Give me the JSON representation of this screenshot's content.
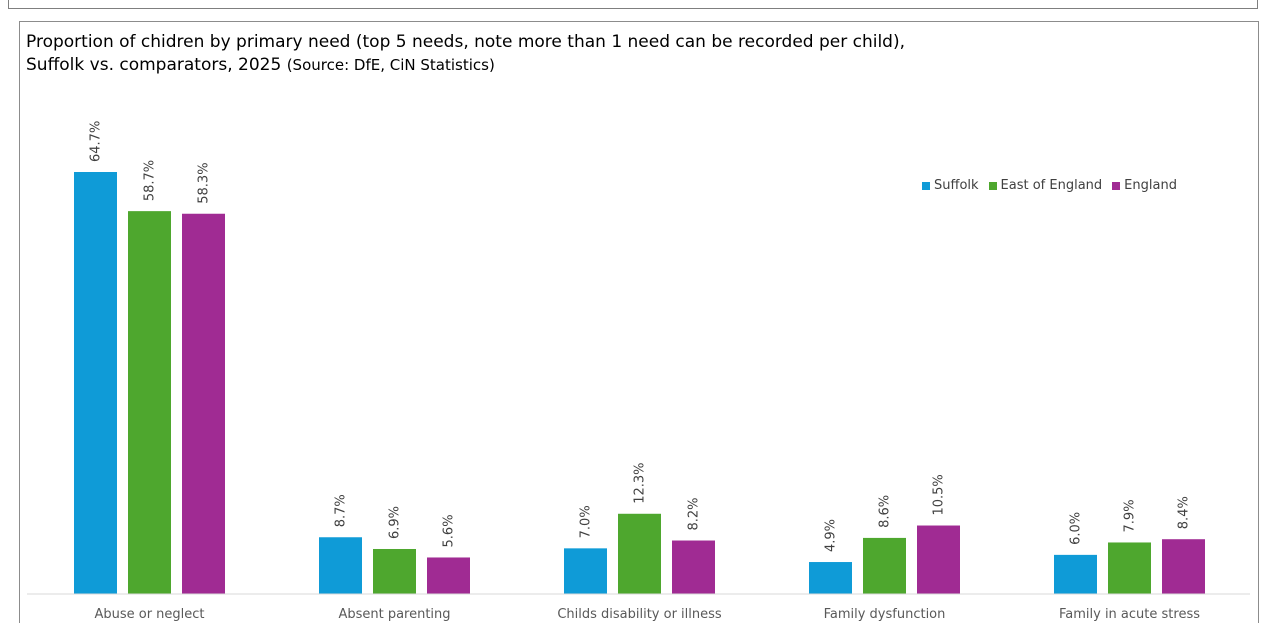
{
  "title": {
    "line1": "Proportion of chidren by primary need (top 5 needs, note more than 1 need can be recorded per child),",
    "line2": "Suffolk vs. comparators, 2025",
    "source": "(Source: DfE, CiN Statistics)"
  },
  "chart_data": {
    "type": "bar",
    "categories": [
      "Abuse or neglect",
      "Absent parenting",
      "Childs disability or illness",
      "Family dysfunction",
      "Family in acute stress"
    ],
    "series": [
      {
        "name": "Suffolk",
        "color": "#0f9bd7",
        "values": [
          64.7,
          8.7,
          7.0,
          4.9,
          6.0
        ],
        "labels": [
          "64.7%",
          "8.7%",
          "7.0%",
          "4.9%",
          "6.0%"
        ]
      },
      {
        "name": "East of England",
        "color": "#4ea72e",
        "values": [
          58.7,
          6.9,
          12.3,
          8.6,
          7.9
        ],
        "labels": [
          "58.7%",
          "6.9%",
          "12.3%",
          "8.6%",
          "7.9%"
        ]
      },
      {
        "name": "England",
        "color": "#a02b93",
        "values": [
          58.3,
          5.6,
          8.2,
          10.5,
          8.4
        ],
        "labels": [
          "58.3%",
          "5.6%",
          "8.2%",
          "10.5%",
          "8.4%"
        ]
      }
    ],
    "ylim": [
      0,
      65
    ],
    "grid": false,
    "legend_position": "top-right"
  }
}
